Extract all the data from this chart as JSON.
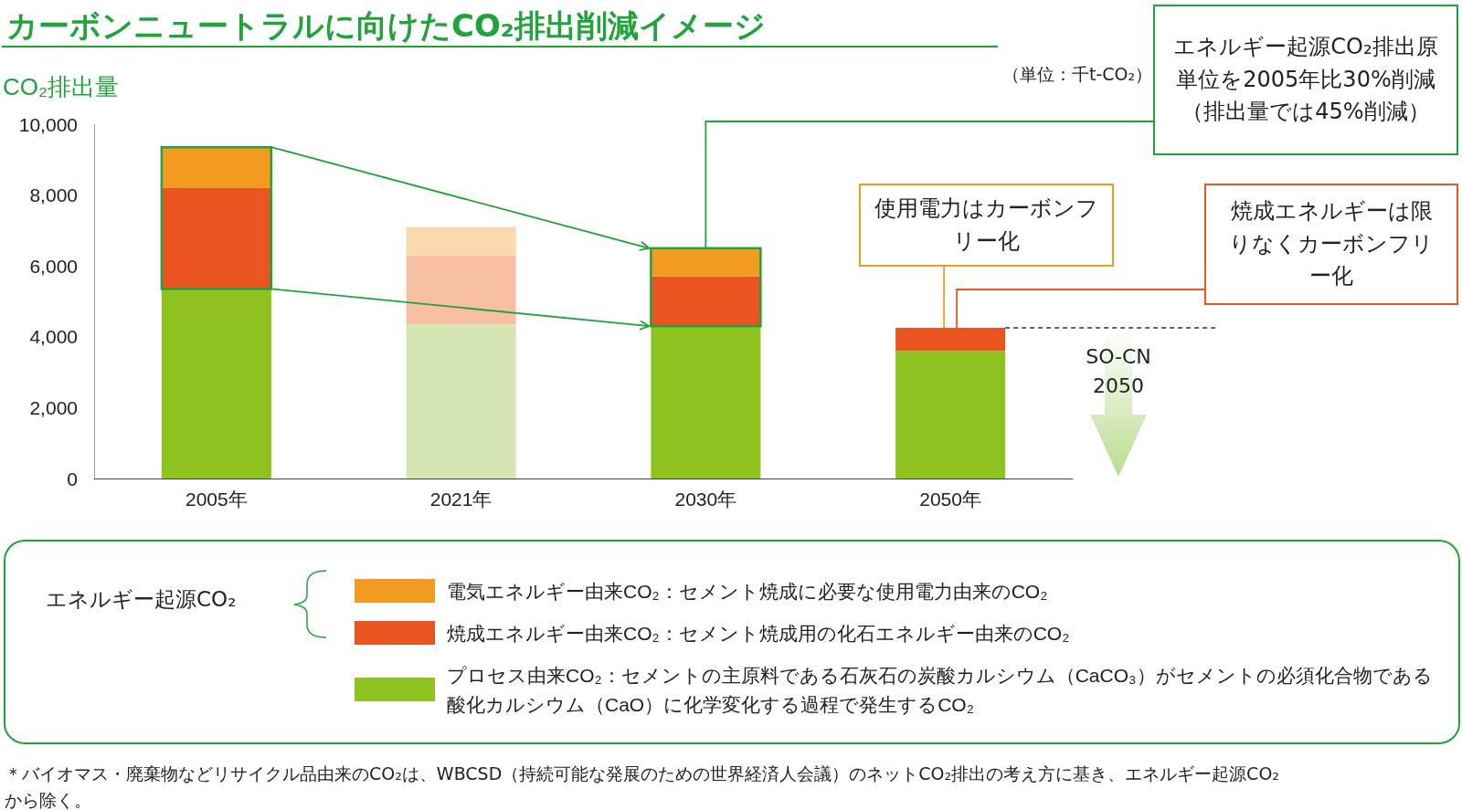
{
  "chart_data": {
    "type": "bar",
    "title": "カーボンニュートラルに向けたCO₂排出削減イメージ",
    "ylabel": "CO₂排出量",
    "categories": [
      "2005年",
      "2021年",
      "2030年",
      "2050年"
    ],
    "stacked": true,
    "legend": "bottom",
    "grid": false,
    "ylim": [
      0,
      10000
    ],
    "yticks": [
      0,
      {
        "value": 2000,
        "label": "2,000"
      },
      {
        "value": 4000,
        "label": "4,000"
      },
      {
        "value": 6000,
        "label": "6,000"
      },
      {
        "value": 8000,
        "label": "8,000"
      },
      {
        "value": 10000,
        "label": "10,000"
      }
    ],
    "series": [
      {
        "name": "プロセス由来CO₂：セメントの主原料である石灰石の炭酸カルシウム（CaCO₃）がセメントの必須化合物である酸化カルシウム（CaO）に化学変化する過程で発生するCO₂",
        "color": "#8dc21f",
        "colors": [
          "#8dc21f",
          "#d6e6b2",
          "#8dc21f",
          "#8dc21f"
        ],
        "values": [
          5350,
          4350,
          4300,
          3600
        ]
      },
      {
        "name": "焼成エネルギー由来CO₂：セメント焼成用の化石エネルギー由来のCO₂",
        "color": "#e95420",
        "colors": [
          "#e95420",
          "#f7c0a3",
          "#e95420",
          "#e95420"
        ],
        "values": [
          2850,
          1950,
          1400,
          650
        ]
      },
      {
        "name": "電気エネルギー由来CO₂：セメント焼成に必要な使用電力由来のCO₂",
        "color": "#f39a21",
        "colors": [
          "#f39a21",
          "#fbd9ae",
          "#f39a21",
          "#f39a21"
        ],
        "values": [
          1150,
          800,
          800,
          0
        ]
      }
    ],
    "ref_lines": [
      {
        "axis": "y",
        "value": 4250,
        "label": "SO-CN\n2050",
        "color": "#333333",
        "line_style": "dashed"
      }
    ],
    "annotations": [
      "（単位：千t-CO₂）",
      {
        "text": "エネルギー起源CO₂排出原単位を2005年比30%削減（排出量では45%削減）",
        "x": "2030年",
        "y": 6500
      },
      {
        "text": "使用電力はカーボンフリー化",
        "x": "2050年",
        "y": 4250
      },
      {
        "text": "焼成エネルギーは限りなくカーボンフリー化",
        "x": "2050年",
        "y": 4250
      },
      "エネルギー起源CO₂",
      "＊バイオマス・廃棄物などリサイクル品由来のCO₂は、WBCSD（持続可能な発展のための世界経済人会議）のネットCO₂排出の考え方に基き、エネルギー起源CO₂から除く。"
    ]
  }
}
